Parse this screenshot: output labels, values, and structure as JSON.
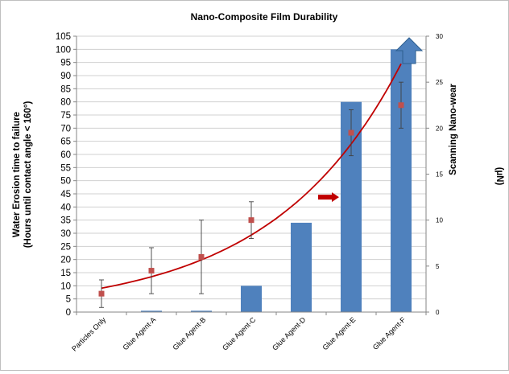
{
  "chart_data": {
    "type": "bar",
    "title": "Nano-Composite  Film Durability",
    "categories": [
      "Particles Only",
      "Glue Agent-A",
      "Glue Agent-B",
      "Glue Agent-C",
      "Glue Agent-D",
      "Glue Agent-E",
      "Glue Agent-F"
    ],
    "ylabel_left_line1": "Water Erosion time to failure",
    "ylabel_left_line2": "(Hours until contact angle < 160°)",
    "ylabel_right": "Scanning Nano-wear",
    "ylabel_right_unit": "(µN)",
    "ylim_left": [
      0,
      105
    ],
    "ylim_right": [
      0,
      30
    ],
    "yticks_left": [
      0,
      5,
      10,
      15,
      20,
      25,
      30,
      35,
      40,
      45,
      50,
      55,
      60,
      65,
      70,
      75,
      80,
      85,
      90,
      95,
      100,
      105
    ],
    "yticks_right": [
      0,
      5,
      10,
      15,
      20,
      25,
      30
    ],
    "grid": true,
    "series": [
      {
        "axis": "left",
        "kind": "bar",
        "color": "#4f81bd",
        "values": [
          0,
          0.5,
          0.5,
          10,
          34,
          80,
          100
        ]
      },
      {
        "axis": "right",
        "kind": "scatter",
        "color": "#c0504d",
        "values": [
          2,
          4.5,
          6,
          10,
          0,
          19.5,
          22.5
        ],
        "present": [
          true,
          true,
          true,
          true,
          false,
          true,
          true
        ],
        "err_low": [
          0.5,
          2,
          2,
          8,
          0,
          17,
          20
        ],
        "err_high": [
          3.5,
          7,
          10,
          12,
          0,
          22,
          25
        ]
      },
      {
        "axis": "right",
        "kind": "trend",
        "color": "#c00000",
        "x_start": 0,
        "x_end": 6,
        "y_start": 2.6,
        "y_end": 27
      }
    ],
    "annotations": {
      "arrow_color": "#c00000",
      "arrow_category": "Glue Agent-E",
      "arrow_value_right": 12.5,
      "overflow_arrow_color": "#4f81bd",
      "overflow_arrow_category": "Glue Agent-F"
    }
  }
}
